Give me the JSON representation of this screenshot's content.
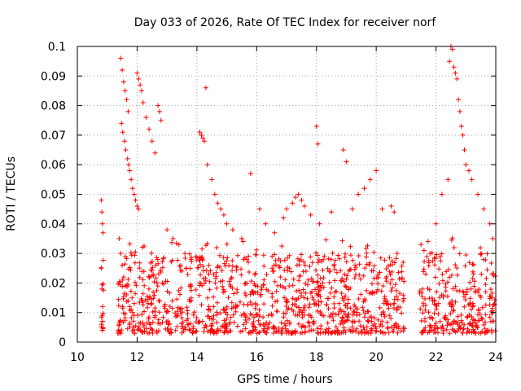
{
  "chart_data": {
    "type": "scatter",
    "title": "Day 033 of 2026, Rate Of TEC Index for receiver norf",
    "xlabel": "GPS time / hours",
    "ylabel": "ROTI / TECUs",
    "xlim": [
      10,
      24
    ],
    "ylim": [
      0,
      0.1
    ],
    "xticks": [
      "10",
      "12",
      "14",
      "16",
      "18",
      "20",
      "22",
      "24"
    ],
    "yticks": [
      "0",
      "0.01",
      "0.02",
      "0.03",
      "0.04",
      "0.05",
      "0.06",
      "0.07",
      "0.08",
      "0.09",
      "0.1"
    ],
    "grid": true,
    "marker": "+",
    "color": "#ff0000",
    "series": [
      {
        "name": "ROTI",
        "x": [
          10.8,
          10.82,
          10.84,
          10.86,
          10.8,
          10.82,
          10.85,
          10.83,
          10.81,
          10.84,
          11.45,
          11.5,
          11.55,
          11.6,
          11.65,
          11.7,
          11.48,
          11.52,
          11.58,
          11.62,
          11.68,
          11.72,
          11.75,
          11.8,
          11.85,
          11.9,
          11.95,
          12.0,
          12.05,
          11.4,
          11.45,
          11.5,
          11.55,
          11.6,
          11.65,
          11.7,
          11.75,
          11.8,
          11.85,
          11.9,
          12.0,
          12.05,
          12.1,
          12.15,
          12.2,
          12.3,
          12.4,
          12.5,
          12.6,
          12.7,
          12.75,
          12.8,
          13.0,
          13.2,
          13.4,
          13.6,
          13.8,
          14.1,
          14.15,
          14.2,
          14.25,
          14.3,
          14.35,
          14.5,
          14.6,
          14.7,
          14.8,
          14.9,
          15.0,
          15.2,
          15.5,
          15.8,
          16.1,
          16.3,
          16.6,
          16.9,
          17.0,
          17.2,
          17.3,
          17.4,
          17.5,
          17.6,
          17.8,
          18.0,
          18.05,
          18.1,
          18.5,
          18.9,
          19.0,
          19.2,
          19.4,
          19.6,
          19.8,
          20.0,
          20.2,
          20.5,
          20.6,
          20.7,
          20.9,
          21.5,
          21.6,
          21.8,
          22.0,
          22.2,
          22.4,
          22.45,
          22.5,
          22.55,
          22.6,
          22.65,
          22.7,
          22.75,
          22.8,
          22.85,
          22.9,
          22.95,
          23.0,
          23.1,
          23.2,
          23.4,
          23.6,
          23.8,
          23.9
        ],
        "y": [
          0.048,
          0.044,
          0.04,
          0.037,
          0.025,
          0.018,
          0.012,
          0.009,
          0.006,
          0.004,
          0.096,
          0.092,
          0.088,
          0.085,
          0.082,
          0.078,
          0.074,
          0.071,
          0.068,
          0.065,
          0.062,
          0.06,
          0.058,
          0.055,
          0.052,
          0.05,
          0.048,
          0.046,
          0.045,
          0.035,
          0.03,
          0.026,
          0.022,
          0.019,
          0.016,
          0.014,
          0.012,
          0.011,
          0.01,
          0.009,
          0.091,
          0.089,
          0.087,
          0.085,
          0.081,
          0.076,
          0.072,
          0.068,
          0.064,
          0.08,
          0.078,
          0.075,
          0.038,
          0.035,
          0.033,
          0.03,
          0.028,
          0.071,
          0.07,
          0.069,
          0.068,
          0.086,
          0.06,
          0.055,
          0.05,
          0.047,
          0.045,
          0.043,
          0.04,
          0.038,
          0.035,
          0.057,
          0.045,
          0.04,
          0.037,
          0.042,
          0.045,
          0.047,
          0.049,
          0.05,
          0.048,
          0.046,
          0.043,
          0.073,
          0.067,
          0.04,
          0.044,
          0.065,
          0.061,
          0.045,
          0.05,
          0.052,
          0.055,
          0.058,
          0.045,
          0.046,
          0.044,
          0.03,
          0.027,
          0.033,
          0.031,
          0.03,
          0.04,
          0.05,
          0.055,
          0.095,
          0.1,
          0.099,
          0.093,
          0.091,
          0.089,
          0.082,
          0.078,
          0.073,
          0.07,
          0.065,
          0.06,
          0.058,
          0.055,
          0.05,
          0.045,
          0.04,
          0.035
        ]
      }
    ],
    "dense_band": {
      "description": "dense cloud of points between 0.004 and 0.03 across active intervals",
      "intervals": [
        [
          10.78,
          10.88
        ],
        [
          11.35,
          20.95
        ],
        [
          21.45,
          24.0
        ]
      ],
      "y_min": 0.003,
      "y_max": 0.03
    }
  }
}
